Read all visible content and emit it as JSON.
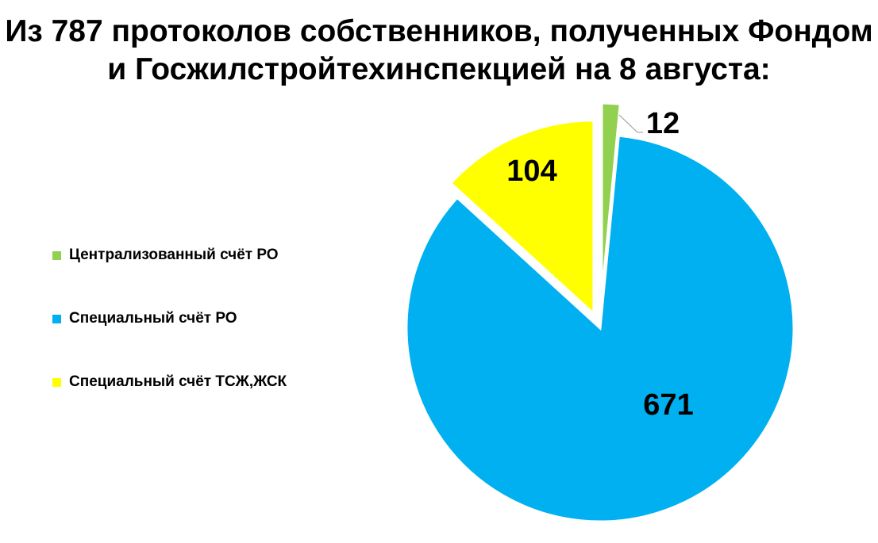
{
  "chart_data": {
    "type": "pie",
    "title": "Из 787 протоколов собственников, полученных Фондом и Госжилстройтехинспекцией на 8 августа:",
    "legend_position": "left",
    "slices": [
      {
        "name": "Централизованный счёт РО",
        "value": 12,
        "label": "12",
        "color": "#92d050",
        "exploded": true
      },
      {
        "name": "Специальный счёт РО",
        "value": 671,
        "label": "671",
        "color": "#00b0f0",
        "exploded": false
      },
      {
        "name": "Специальный счёт ТСЖ,ЖСК",
        "value": 104,
        "label": "104",
        "color": "#ffff00",
        "exploded": true
      }
    ]
  }
}
